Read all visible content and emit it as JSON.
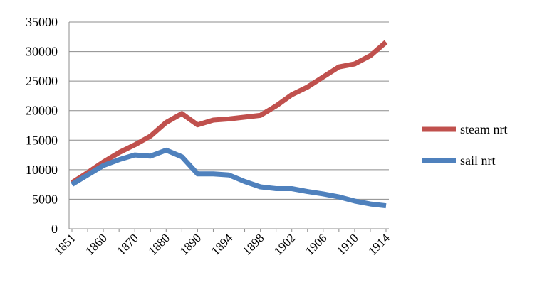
{
  "chart_data": {
    "type": "line",
    "title": "",
    "xlabel": "",
    "ylabel": "",
    "ylim": [
      0,
      35000
    ],
    "y_ticks": [
      "0",
      "5000",
      "10000",
      "15000",
      "20000",
      "25000",
      "30000",
      "35000"
    ],
    "x_tick_labels": [
      "1851",
      "1860",
      "1870",
      "1880",
      "1890",
      "1894",
      "1898",
      "1902",
      "1906",
      "1910",
      "1914"
    ],
    "grid": "horizontal",
    "legend_position": "right",
    "x": [
      "1851",
      "1855",
      "1860",
      "1865",
      "1870",
      "1875",
      "1880",
      "1885",
      "1890",
      "1892",
      "1894",
      "1896",
      "1898",
      "1900",
      "1902",
      "1904",
      "1906",
      "1908",
      "1910",
      "1912",
      "1914"
    ],
    "series": [
      {
        "name": "steam nrt",
        "color": "#c0504d",
        "values": [
          7800,
          9500,
          11300,
          12900,
          14200,
          15700,
          18000,
          19500,
          17600,
          18400,
          18600,
          18900,
          19200,
          20800,
          22700,
          24000,
          25700,
          27400,
          27900,
          29300,
          31600
        ]
      },
      {
        "name": "sail nrt",
        "color": "#4f81bd",
        "values": [
          7500,
          9100,
          10700,
          11700,
          12500,
          12300,
          13300,
          12200,
          9300,
          9300,
          9100,
          8000,
          7100,
          6800,
          6800,
          6300,
          5900,
          5400,
          4700,
          4200,
          3900
        ]
      }
    ]
  }
}
